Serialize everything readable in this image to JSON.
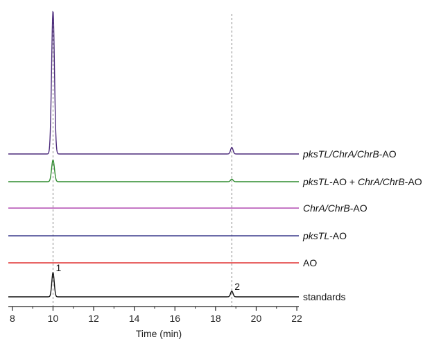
{
  "chart_data": {
    "type": "line",
    "xlabel": "Time (min)",
    "xlim": [
      7.8,
      22.1
    ],
    "x_ticks": [
      8,
      10,
      12,
      14,
      16,
      18,
      20,
      22
    ],
    "reference_lines_x": [
      10.0,
      18.8
    ],
    "series": [
      {
        "label_parts": [
          {
            "text": "pksTL",
            "italic": true
          },
          {
            "text": "/",
            "italic": true
          },
          {
            "text": "ChrA",
            "italic": true
          },
          {
            "text": "/",
            "italic": true
          },
          {
            "text": "ChrB",
            "italic": true
          },
          {
            "text": "-AO",
            "italic": false
          }
        ],
        "color": "#4b2a7b",
        "peaks": [
          {
            "x": 10.0,
            "height": 1.0,
            "width": 0.07
          },
          {
            "x": 18.8,
            "height": 0.046,
            "width": 0.06
          }
        ]
      },
      {
        "label_parts": [
          {
            "text": "pksTL",
            "italic": true
          },
          {
            "text": "-AO + ",
            "italic": false
          },
          {
            "text": "ChrA",
            "italic": true
          },
          {
            "text": "/",
            "italic": true
          },
          {
            "text": "ChrB",
            "italic": true
          },
          {
            "text": "-AO",
            "italic": false
          }
        ],
        "color": "#2e8b2e",
        "peaks": [
          {
            "x": 10.0,
            "height": 0.152,
            "width": 0.07
          },
          {
            "x": 18.8,
            "height": 0.018,
            "width": 0.06
          }
        ]
      },
      {
        "label_parts": [
          {
            "text": "ChrA",
            "italic": true
          },
          {
            "text": "/",
            "italic": true
          },
          {
            "text": "ChrB",
            "italic": true
          },
          {
            "text": "-AO",
            "italic": false
          }
        ],
        "color": "#b04ab0",
        "peaks": []
      },
      {
        "label_parts": [
          {
            "text": "pksTL",
            "italic": true
          },
          {
            "text": "-AO",
            "italic": false
          }
        ],
        "color": "#3a3a8c",
        "peaks": []
      },
      {
        "label_parts": [
          {
            "text": "AO",
            "italic": false
          }
        ],
        "color": "#e03030",
        "peaks": []
      },
      {
        "label_parts": [
          {
            "text": "standards",
            "italic": false
          }
        ],
        "color": "#111111",
        "peaks": [
          {
            "x": 10.0,
            "height": 0.17,
            "width": 0.06
          },
          {
            "x": 18.8,
            "height": 0.04,
            "width": 0.06
          }
        ],
        "peak_labels": [
          {
            "x": 10.0,
            "text": "1"
          },
          {
            "x": 18.8,
            "text": "2"
          }
        ]
      }
    ]
  }
}
